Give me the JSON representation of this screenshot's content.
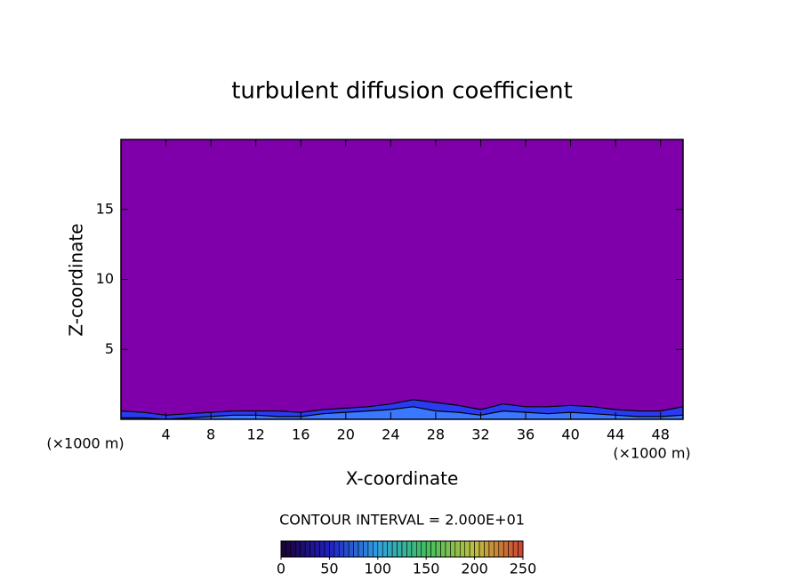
{
  "chart_data": {
    "type": "contour",
    "title": "turbulent diffusion coefficient",
    "xlabel": "X-coordinate",
    "ylabel": "Z-coordinate",
    "xunit": "(×1000 m)",
    "yunit": "(×1000 m)",
    "xlim": [
      0,
      50
    ],
    "ylim": [
      0,
      20
    ],
    "xticks": [
      4,
      8,
      12,
      16,
      20,
      24,
      28,
      32,
      36,
      40,
      44,
      48
    ],
    "yticks": [
      5,
      10,
      15
    ],
    "background_color": "#7f00aa",
    "x": [
      0,
      2,
      4,
      6,
      8,
      10,
      12,
      14,
      16,
      18,
      20,
      22,
      24,
      26,
      28,
      30,
      32,
      34,
      36,
      38,
      40,
      42,
      44,
      46,
      48,
      50
    ],
    "contours": [
      {
        "level": 20,
        "color": "#2a3cf0",
        "z": [
          0.6,
          0.5,
          0.3,
          0.4,
          0.5,
          0.6,
          0.6,
          0.6,
          0.5,
          0.7,
          0.8,
          0.9,
          1.1,
          1.4,
          1.2,
          1.0,
          0.7,
          1.1,
          0.9,
          0.9,
          1.0,
          0.9,
          0.7,
          0.6,
          0.6,
          0.9
        ]
      },
      {
        "level": 40,
        "color": "#3a78ff",
        "z": [
          0.1,
          0.1,
          0.0,
          0.1,
          0.2,
          0.3,
          0.3,
          0.2,
          0.2,
          0.4,
          0.5,
          0.6,
          0.7,
          0.9,
          0.6,
          0.5,
          0.3,
          0.6,
          0.5,
          0.4,
          0.5,
          0.4,
          0.3,
          0.2,
          0.2,
          0.3
        ]
      }
    ],
    "contour_interval_text": "CONTOUR INTERVAL = 2.000E+01",
    "colorbar": {
      "clim": [
        0,
        250
      ],
      "ticks": [
        0,
        50,
        100,
        150,
        200,
        250
      ],
      "colormap": [
        "#1a0033",
        "#2020c0",
        "#30a0e0",
        "#40c060",
        "#c0c040",
        "#d04030"
      ]
    }
  }
}
